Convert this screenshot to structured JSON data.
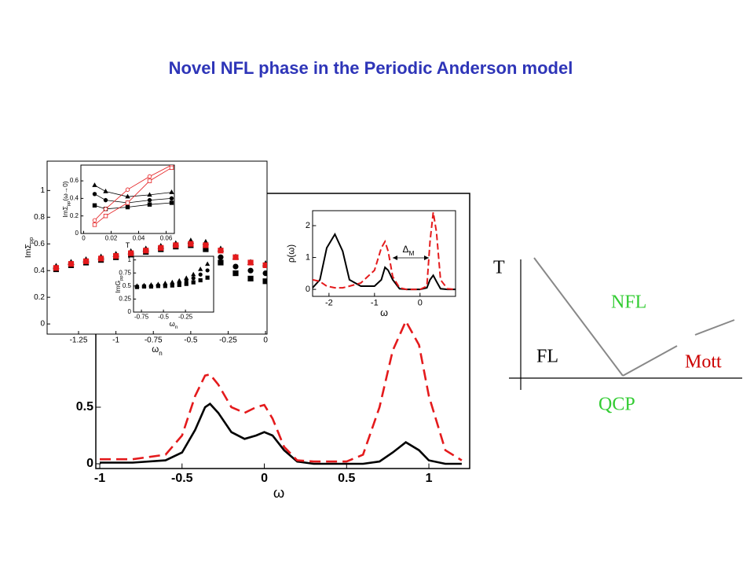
{
  "title": "Novel NFL phase in the Periodic Anderson model",
  "chart_data": [
    {
      "type": "line",
      "x_label": [
        "ω"
      ],
      "x": [
        -1,
        -0.8,
        -0.6,
        -0.5,
        -0.42,
        -0.36,
        -0.33,
        -0.28,
        -0.2,
        -0.12,
        -0.05,
        0,
        0.05,
        0.12,
        0.2,
        0.3,
        0.5,
        0.6,
        0.7,
        0.78,
        0.86,
        0.94,
        1.0,
        1.1,
        1.2
      ],
      "series": [
        {
          "color": "#000000",
          "line_style": "solid",
          "values": [
            0.01,
            0.01,
            0.03,
            0.1,
            0.3,
            0.5,
            0.53,
            0.45,
            0.28,
            0.22,
            0.25,
            0.28,
            0.25,
            0.12,
            0.02,
            0.0,
            0.0,
            0.0,
            0.02,
            0.1,
            0.19,
            0.12,
            0.03,
            0.0,
            0.0
          ]
        },
        {
          "color": "#e41a1c",
          "line_style": "dashed",
          "values": [
            0.04,
            0.04,
            0.08,
            0.25,
            0.6,
            0.78,
            0.79,
            0.7,
            0.5,
            0.45,
            0.5,
            0.52,
            0.4,
            0.15,
            0.03,
            0.02,
            0.02,
            0.08,
            0.5,
            1.0,
            1.26,
            1.05,
            0.6,
            0.12,
            0.03
          ]
        }
      ],
      "xlim": [
        -1.024,
        1.248
      ],
      "ylim": [
        -0.042,
        2.39
      ],
      "xticks": [
        -1,
        -0.5,
        0,
        0.5,
        1
      ],
      "yticks": [
        0,
        0.5
      ]
    },
    {
      "type": "line",
      "x_label": [
        "ω"
      ],
      "y_label": [
        "ρ(ω)"
      ],
      "annotation": [
        "Δ",
        "M"
      ],
      "x": [
        -2.36,
        -2.2,
        -2.05,
        -1.87,
        -1.7,
        -1.55,
        -1.3,
        -1.0,
        -0.85,
        -0.77,
        -0.7,
        -0.6,
        -0.45,
        -0.3,
        0.0,
        0.15,
        0.22,
        0.29,
        0.36,
        0.45,
        0.6,
        0.78
      ],
      "series": [
        {
          "color": "#000000",
          "line_style": "solid",
          "values": [
            0.05,
            0.3,
            1.3,
            1.73,
            1.2,
            0.3,
            0.1,
            0.1,
            0.3,
            0.69,
            0.6,
            0.3,
            0.02,
            0.0,
            0.0,
            0.05,
            0.3,
            0.44,
            0.25,
            0.02,
            0.0,
            0.0
          ]
        },
        {
          "color": "#e41a1c",
          "line_style": "dashed",
          "values": [
            0.3,
            0.25,
            0.1,
            0.05,
            0.05,
            0.1,
            0.2,
            0.6,
            1.3,
            1.5,
            1.2,
            0.4,
            0.05,
            0.0,
            0.0,
            0.1,
            1.5,
            2.42,
            1.8,
            0.3,
            0.02,
            0.0
          ]
        }
      ],
      "xlim": [
        -2.36,
        0.78
      ],
      "ylim": [
        -0.22,
        2.47
      ],
      "xticks": [
        -2,
        -1,
        0
      ],
      "yticks": [
        0,
        1,
        2
      ]
    },
    {
      "type": "scatter",
      "x_label": [
        "ω",
        "n"
      ],
      "y_label": [
        "ImΣ",
        "pp"
      ],
      "x": [
        -1.4,
        -1.3,
        -1.2,
        -1.1,
        -1.0,
        -0.9,
        -0.8,
        -0.7,
        -0.6,
        -0.5,
        -0.4,
        -0.3,
        -0.2,
        -0.1,
        0.0
      ],
      "series": [
        {
          "color": "#000000",
          "marker": "triangle",
          "filled": true,
          "values": [
            0.43,
            0.46,
            0.48,
            0.5,
            0.52,
            0.54,
            0.56,
            0.58,
            0.6,
            0.62,
            0.61,
            0.56,
            0.5,
            0.46,
            0.45
          ]
        },
        {
          "color": "#000000",
          "marker": "circle",
          "filled": true,
          "values": [
            0.42,
            0.45,
            0.47,
            0.49,
            0.51,
            0.53,
            0.55,
            0.57,
            0.59,
            0.6,
            0.58,
            0.5,
            0.43,
            0.4,
            0.38
          ]
        },
        {
          "color": "#000000",
          "marker": "square",
          "filled": true,
          "values": [
            0.41,
            0.44,
            0.46,
            0.48,
            0.5,
            0.52,
            0.54,
            0.56,
            0.58,
            0.59,
            0.56,
            0.46,
            0.38,
            0.34,
            0.32
          ]
        },
        {
          "color": "#e41a1c",
          "marker": "square",
          "filled": true,
          "values": [
            0.42,
            0.45,
            0.47,
            0.49,
            0.51,
            0.53,
            0.55,
            0.57,
            0.59,
            0.6,
            0.59,
            0.55,
            0.5,
            0.46,
            0.44
          ]
        }
      ],
      "xlim": [
        -1.46,
        0.01
      ],
      "ylim": [
        -0.076,
        1.22
      ],
      "xticks": [
        -1.25,
        -1,
        -0.75,
        -0.5,
        -0.25,
        0
      ],
      "yticks": [
        0,
        0.2,
        0.4,
        0.6,
        0.8,
        1
      ]
    },
    {
      "type": "scatter",
      "x_label": [
        "T"
      ],
      "y_label": [
        "ImΣ",
        "pp",
        "(ω→0)"
      ],
      "x": [
        0.008,
        0.016,
        0.032,
        0.048,
        0.064
      ],
      "series": [
        {
          "color": "#000000",
          "marker": "triangle",
          "filled": true,
          "connect": true,
          "values": [
            0.55,
            0.48,
            0.42,
            0.44,
            0.47
          ]
        },
        {
          "color": "#000000",
          "marker": "circle",
          "filled": true,
          "connect": true,
          "values": [
            0.45,
            0.38,
            0.35,
            0.38,
            0.4
          ]
        },
        {
          "color": "#000000",
          "marker": "square",
          "filled": true,
          "connect": true,
          "values": [
            0.32,
            0.28,
            0.3,
            0.33,
            0.35
          ]
        },
        {
          "color": "#e41a1c",
          "marker": "circle",
          "filled": false,
          "connect": true,
          "values": [
            0.15,
            0.28,
            0.5,
            0.65,
            0.78
          ]
        },
        {
          "color": "#e41a1c",
          "marker": "square",
          "filled": false,
          "connect": true,
          "values": [
            0.1,
            0.2,
            0.35,
            0.6,
            0.75
          ]
        }
      ],
      "xlim": [
        -0.002,
        0.066
      ],
      "ylim": [
        0,
        0.78
      ],
      "xticks": [
        0,
        0.02,
        0.04,
        0.06
      ],
      "yticks": [
        0,
        0.2,
        0.4,
        0.6
      ]
    },
    {
      "type": "scatter",
      "x_label": [
        "ω",
        "n"
      ],
      "y_label": [
        "ImG",
        "pp"
      ],
      "x": [
        -0.8,
        -0.72,
        -0.64,
        -0.56,
        -0.48,
        -0.4,
        -0.32,
        -0.24,
        -0.16,
        -0.08,
        0.0
      ],
      "series": [
        {
          "color": "#000000",
          "marker": "triangle",
          "filled": true,
          "values": [
            0.5,
            0.51,
            0.52,
            0.53,
            0.55,
            0.57,
            0.6,
            0.65,
            0.72,
            0.82,
            0.92
          ]
        },
        {
          "color": "#000000",
          "marker": "circle",
          "filled": true,
          "values": [
            0.49,
            0.5,
            0.5,
            0.51,
            0.52,
            0.54,
            0.56,
            0.6,
            0.65,
            0.72,
            0.8
          ]
        },
        {
          "color": "#000000",
          "marker": "square",
          "filled": true,
          "values": [
            0.48,
            0.49,
            0.49,
            0.5,
            0.5,
            0.51,
            0.52,
            0.54,
            0.57,
            0.61,
            0.66
          ]
        }
      ],
      "xlim": [
        -0.84,
        0.07
      ],
      "ylim": [
        0,
        1.07
      ],
      "xticks": [
        -0.75,
        -0.5,
        -0.25
      ],
      "yticks": [
        0,
        0.25,
        0.5,
        0.75,
        1
      ]
    }
  ],
  "phase_diagram": {
    "y_axis": "T",
    "regions": [
      "NFL",
      "FL",
      "Mott"
    ],
    "point": "QCP"
  }
}
